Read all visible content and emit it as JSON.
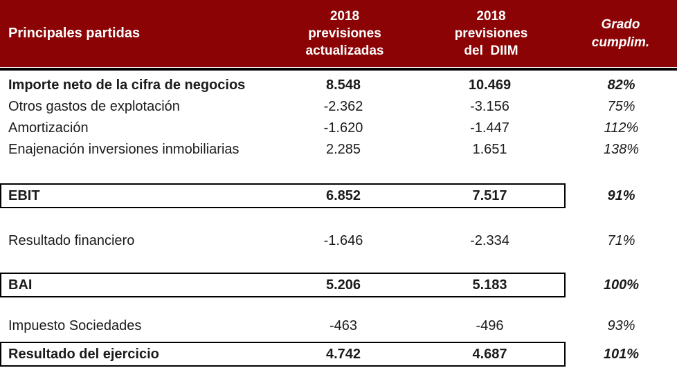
{
  "colors": {
    "header_bg": "#8B0304",
    "header_text": "#FFFFFF",
    "body_text": "#1B1B1B",
    "box_border": "#000000"
  },
  "header": {
    "item_label": "Principales partidas",
    "col_actualizadas": "2018\nprevisiones\nactualizadas",
    "col_diim": "2018\nprevisiones\ndel  DIIM",
    "col_grado": "Grado\ncumplim."
  },
  "table": {
    "rows": [
      {
        "label": "Importe neto de la cifra de negocios",
        "actualizadas": "8.548",
        "diim": "10.469",
        "grado": "82%"
      },
      {
        "label": "Otros gastos de explotación",
        "actualizadas": "-2.362",
        "diim": "-3.156",
        "grado": "75%"
      },
      {
        "label": "Amortización",
        "actualizadas": "-1.620",
        "diim": "-1.447",
        "grado": "112%"
      },
      {
        "label": "Enajenación inversiones inmobiliarias",
        "actualizadas": "2.285",
        "diim": "1.651",
        "grado": "138%"
      },
      {
        "label": "EBIT",
        "actualizadas": "6.852",
        "diim": "7.517",
        "grado": "91%"
      },
      {
        "label": "Resultado financiero",
        "actualizadas": "-1.646",
        "diim": "-2.334",
        "grado": "71%"
      },
      {
        "label": "BAI",
        "actualizadas": "5.206",
        "diim": "5.183",
        "grado": "100%"
      },
      {
        "label": "Impuesto Sociedades",
        "actualizadas": "-463",
        "diim": "-496",
        "grado": "93%"
      },
      {
        "label": "Resultado del ejercicio",
        "actualizadas": "4.742",
        "diim": "4.687",
        "grado": "101%"
      }
    ]
  },
  "chart_data": {
    "type": "table",
    "title": "",
    "columns": [
      "Principales partidas",
      "2018 previsiones actualizadas",
      "2018 previsiones del DIIM",
      "Grado cumplim."
    ],
    "rows": [
      {
        "partida": "Importe neto de la cifra de negocios",
        "previsiones_actualizadas": 8548,
        "previsiones_diim": 10469,
        "grado_cumplim_pct": 82,
        "is_total": false
      },
      {
        "partida": "Otros gastos de explotación",
        "previsiones_actualizadas": -2362,
        "previsiones_diim": -3156,
        "grado_cumplim_pct": 75,
        "is_total": false
      },
      {
        "partida": "Amortización",
        "previsiones_actualizadas": -1620,
        "previsiones_diim": -1447,
        "grado_cumplim_pct": 112,
        "is_total": false
      },
      {
        "partida": "Enajenación inversiones inmobiliarias",
        "previsiones_actualizadas": 2285,
        "previsiones_diim": 1651,
        "grado_cumplim_pct": 138,
        "is_total": false
      },
      {
        "partida": "EBIT",
        "previsiones_actualizadas": 6852,
        "previsiones_diim": 7517,
        "grado_cumplim_pct": 91,
        "is_total": true
      },
      {
        "partida": "Resultado financiero",
        "previsiones_actualizadas": -1646,
        "previsiones_diim": -2334,
        "grado_cumplim_pct": 71,
        "is_total": false
      },
      {
        "partida": "BAI",
        "previsiones_actualizadas": 5206,
        "previsiones_diim": 5183,
        "grado_cumplim_pct": 100,
        "is_total": true
      },
      {
        "partida": "Impuesto Sociedades",
        "previsiones_actualizadas": -463,
        "previsiones_diim": -496,
        "grado_cumplim_pct": 93,
        "is_total": false
      },
      {
        "partida": "Resultado del ejercicio",
        "previsiones_actualizadas": 4742,
        "previsiones_diim": 4687,
        "grado_cumplim_pct": 101,
        "is_total": true
      }
    ],
    "layout": {
      "grid": false,
      "legend": "none",
      "number_format": "es-ES thousands dot"
    }
  }
}
